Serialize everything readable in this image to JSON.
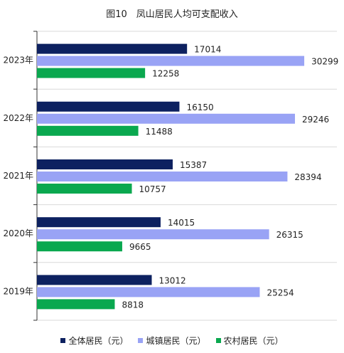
{
  "chart_data": {
    "type": "bar",
    "orientation": "horizontal",
    "title": "图10　凤山居民人均可支配收入",
    "categories": [
      "2023年",
      "2022年",
      "2021年",
      "2020年",
      "2019年"
    ],
    "series": [
      {
        "name": "全体居民（元）",
        "color": "#0d2160",
        "values": [
          17014,
          16150,
          15387,
          14015,
          13012
        ]
      },
      {
        "name": "城镇居民（元）",
        "color": "#99a3f5",
        "values": [
          30299,
          29246,
          28394,
          26315,
          25254
        ]
      },
      {
        "name": "农村居民（元）",
        "color": "#0aa84f",
        "values": [
          12258,
          11488,
          10757,
          9665,
          8818
        ]
      }
    ],
    "xlim": [
      0,
      34000
    ],
    "grid": true,
    "legend": "bottom"
  }
}
